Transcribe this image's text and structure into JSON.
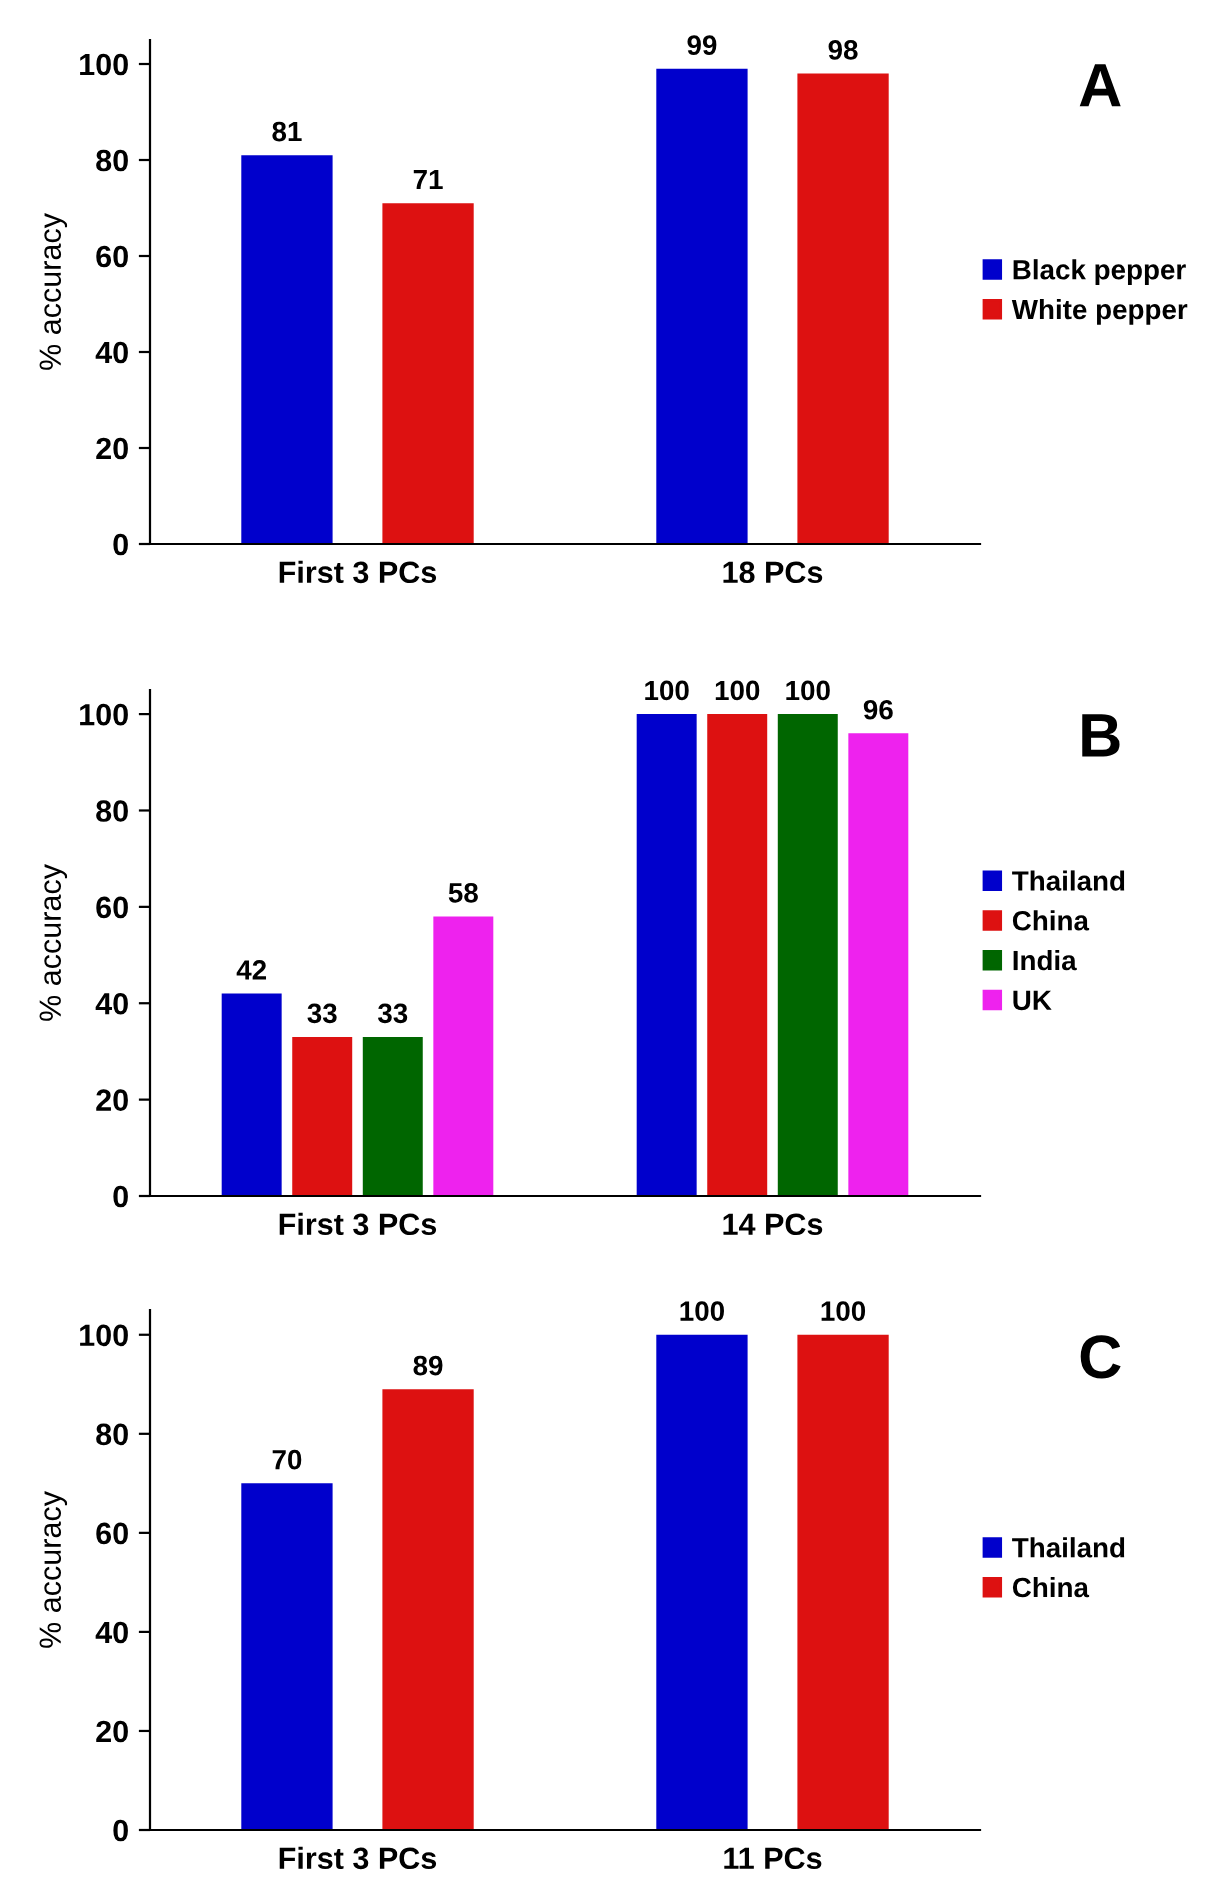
{
  "chart_data": [
    {
      "type": "bar",
      "annotations": [
        "A"
      ],
      "ylabel": "% accuracy",
      "categories": [
        "First 3 PCs",
        "18 PCs"
      ],
      "ylim": [
        0,
        105
      ],
      "yticks": [
        0,
        20,
        40,
        60,
        80,
        100
      ],
      "data_labels": true,
      "legend": "right",
      "grid": false,
      "series": [
        {
          "name": "Black pepper",
          "color": "#0000cc",
          "values": [
            81,
            99
          ]
        },
        {
          "name": "White pepper",
          "color": "#dd1111",
          "values": [
            71,
            98
          ]
        }
      ]
    },
    {
      "type": "bar",
      "annotations": [
        "B"
      ],
      "ylabel": "% accuracy",
      "categories": [
        "First 3 PCs",
        "14 PCs"
      ],
      "ylim": [
        0,
        105
      ],
      "yticks": [
        0,
        20,
        40,
        60,
        80,
        100
      ],
      "data_labels": true,
      "legend": "right",
      "grid": false,
      "series": [
        {
          "name": "Thailand",
          "color": "#0000cc",
          "values": [
            42,
            100
          ]
        },
        {
          "name": "China",
          "color": "#dd1111",
          "values": [
            33,
            100
          ]
        },
        {
          "name": "India",
          "color": "#006600",
          "values": [
            33,
            100
          ]
        },
        {
          "name": "UK",
          "color": "#ee22ee",
          "values": [
            58,
            96
          ]
        }
      ]
    },
    {
      "type": "bar",
      "annotations": [
        "C"
      ],
      "ylabel": "% accuracy",
      "categories": [
        "First 3 PCs",
        "11 PCs"
      ],
      "ylim": [
        0,
        105
      ],
      "yticks": [
        0,
        20,
        40,
        60,
        80,
        100
      ],
      "data_labels": true,
      "legend": "right",
      "grid": false,
      "series": [
        {
          "name": "Thailand",
          "color": "#0000cc",
          "values": [
            70,
            100
          ]
        },
        {
          "name": "China",
          "color": "#dd1111",
          "values": [
            89,
            100
          ]
        }
      ]
    }
  ]
}
